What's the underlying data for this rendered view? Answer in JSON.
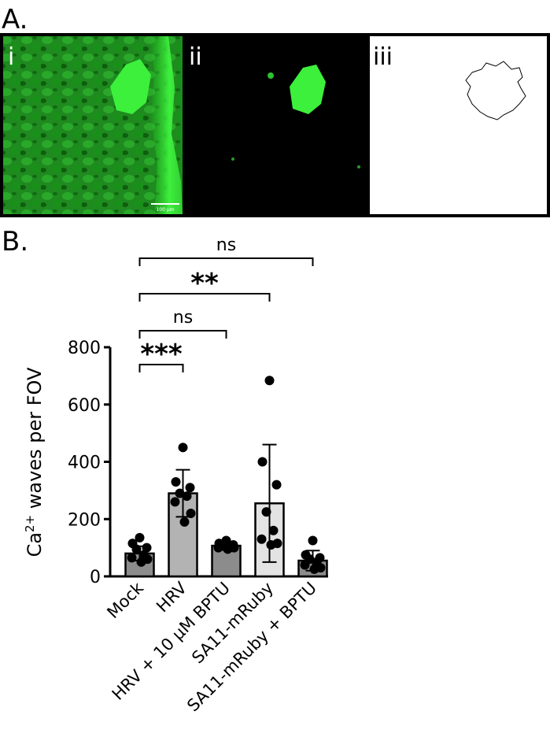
{
  "figure": {
    "panel_a": {
      "label": "A.",
      "subpanels": [
        "i",
        "ii",
        "iii"
      ],
      "scale_bar": "100 µm"
    },
    "panel_b_label": "B."
  },
  "chart_data": {
    "type": "bar",
    "y_label": {
      "base": "Ca",
      "superscript": "2+",
      "rest": " waves per FOV"
    },
    "categories": [
      "Mock",
      "HRV",
      "HRV + 10 µM BPTU",
      "SA11-mRuby",
      "SA11-mRuby + BPTU"
    ],
    "values": [
      80,
      290,
      107,
      255,
      55
    ],
    "errors": [
      25,
      82,
      15,
      205,
      35
    ],
    "colors": [
      "#8c8c8c",
      "#b3b3b3",
      "#8c8c8c",
      "#e3e3e3",
      "#8c8c8c"
    ],
    "points": [
      [
        135,
        115,
        100,
        95,
        75,
        65,
        60,
        50
      ],
      [
        450,
        330,
        310,
        290,
        280,
        260,
        220,
        190
      ],
      [
        125,
        115,
        110,
        110,
        105,
        100,
        100,
        95
      ],
      [
        684,
        400,
        320,
        225,
        160,
        130,
        115,
        110
      ],
      [
        125,
        75,
        65,
        60,
        50,
        40,
        30,
        25
      ]
    ],
    "ylim": [
      0,
      800
    ],
    "yticks": [
      0,
      200,
      400,
      600,
      800
    ],
    "comparisons": [
      {
        "label": "***",
        "between": [
          0,
          1
        ]
      },
      {
        "label": "ns",
        "between": [
          0,
          2
        ]
      },
      {
        "label": "**",
        "between": [
          0,
          3
        ]
      },
      {
        "label": "ns",
        "between": [
          0,
          4
        ]
      }
    ]
  }
}
